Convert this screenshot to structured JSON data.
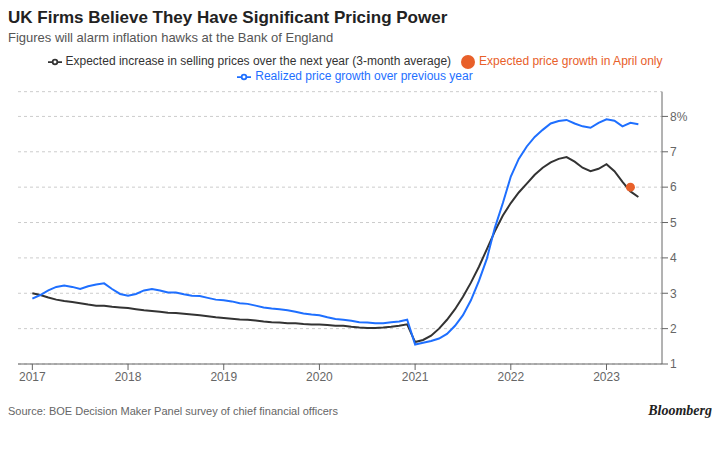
{
  "chart_data": {
    "type": "line",
    "title": "UK Firms Believe They Have Significant Pricing Power",
    "subtitle": "Figures will alarm inflation hawks at the Bank of England",
    "annotations": [
      "Source: BOE Decision Maker Panel survey of chief financial officers",
      "Bloomberg"
    ],
    "series": [
      {
        "name": "Expected increase in selling prices over the next year (3-month average)",
        "type": "line",
        "color": "#333333",
        "x": [
          2017.0,
          2017.083,
          2017.167,
          2017.25,
          2017.333,
          2017.417,
          2017.5,
          2017.583,
          2017.667,
          2017.75,
          2017.833,
          2017.917,
          2018.0,
          2018.083,
          2018.167,
          2018.25,
          2018.333,
          2018.417,
          2018.5,
          2018.583,
          2018.667,
          2018.75,
          2018.833,
          2018.917,
          2019.0,
          2019.083,
          2019.167,
          2019.25,
          2019.333,
          2019.417,
          2019.5,
          2019.583,
          2019.667,
          2019.75,
          2019.833,
          2019.917,
          2020.0,
          2020.083,
          2020.167,
          2020.25,
          2020.333,
          2020.417,
          2020.5,
          2020.583,
          2020.667,
          2020.75,
          2020.833,
          2020.917,
          2021.0,
          2021.083,
          2021.167,
          2021.25,
          2021.333,
          2021.417,
          2021.5,
          2021.583,
          2021.667,
          2021.75,
          2021.833,
          2021.917,
          2022.0,
          2022.083,
          2022.167,
          2022.25,
          2022.333,
          2022.417,
          2022.5,
          2022.583,
          2022.667,
          2022.75,
          2022.833,
          2022.917,
          2023.0,
          2023.083,
          2023.167,
          2023.25,
          2023.333
        ],
        "values": [
          3.0,
          2.95,
          2.88,
          2.82,
          2.78,
          2.75,
          2.72,
          2.68,
          2.65,
          2.65,
          2.62,
          2.6,
          2.58,
          2.55,
          2.52,
          2.5,
          2.48,
          2.45,
          2.44,
          2.42,
          2.4,
          2.38,
          2.35,
          2.32,
          2.3,
          2.28,
          2.26,
          2.25,
          2.23,
          2.2,
          2.18,
          2.17,
          2.15,
          2.15,
          2.13,
          2.12,
          2.12,
          2.1,
          2.08,
          2.08,
          2.05,
          2.03,
          2.02,
          2.02,
          2.03,
          2.05,
          2.08,
          2.12,
          1.62,
          1.68,
          1.8,
          2.0,
          2.25,
          2.55,
          2.9,
          3.3,
          3.75,
          4.25,
          4.75,
          5.2,
          5.55,
          5.85,
          6.1,
          6.35,
          6.55,
          6.7,
          6.8,
          6.85,
          6.72,
          6.55,
          6.45,
          6.52,
          6.65,
          6.45,
          6.15,
          5.88,
          5.72
        ]
      },
      {
        "name": "Realized price growth over previous year",
        "type": "line",
        "color": "#1e6fff",
        "x": [
          2017.0,
          2017.083,
          2017.167,
          2017.25,
          2017.333,
          2017.417,
          2017.5,
          2017.583,
          2017.667,
          2017.75,
          2017.833,
          2017.917,
          2018.0,
          2018.083,
          2018.167,
          2018.25,
          2018.333,
          2018.417,
          2018.5,
          2018.583,
          2018.667,
          2018.75,
          2018.833,
          2018.917,
          2019.0,
          2019.083,
          2019.167,
          2019.25,
          2019.333,
          2019.417,
          2019.5,
          2019.583,
          2019.667,
          2019.75,
          2019.833,
          2019.917,
          2020.0,
          2020.083,
          2020.167,
          2020.25,
          2020.333,
          2020.417,
          2020.5,
          2020.583,
          2020.667,
          2020.75,
          2020.833,
          2020.917,
          2021.0,
          2021.083,
          2021.167,
          2021.25,
          2021.333,
          2021.417,
          2021.5,
          2021.583,
          2021.667,
          2021.75,
          2021.833,
          2021.917,
          2022.0,
          2022.083,
          2022.167,
          2022.25,
          2022.333,
          2022.417,
          2022.5,
          2022.583,
          2022.667,
          2022.75,
          2022.833,
          2022.917,
          2023.0,
          2023.083,
          2023.167,
          2023.25,
          2023.333
        ],
        "values": [
          2.85,
          2.95,
          3.08,
          3.18,
          3.22,
          3.18,
          3.12,
          3.2,
          3.25,
          3.28,
          3.12,
          2.98,
          2.93,
          2.98,
          3.08,
          3.12,
          3.08,
          3.02,
          3.02,
          2.97,
          2.93,
          2.92,
          2.87,
          2.82,
          2.8,
          2.77,
          2.72,
          2.7,
          2.65,
          2.6,
          2.57,
          2.55,
          2.52,
          2.48,
          2.43,
          2.4,
          2.38,
          2.32,
          2.27,
          2.25,
          2.22,
          2.18,
          2.17,
          2.15,
          2.15,
          2.18,
          2.2,
          2.25,
          1.55,
          1.6,
          1.65,
          1.72,
          1.85,
          2.08,
          2.38,
          2.8,
          3.35,
          3.98,
          4.85,
          5.55,
          6.3,
          6.8,
          7.15,
          7.42,
          7.62,
          7.8,
          7.87,
          7.9,
          7.8,
          7.72,
          7.68,
          7.82,
          7.92,
          7.88,
          7.72,
          7.82,
          7.78
        ]
      },
      {
        "name": "Expected price growth in April only",
        "type": "scatter",
        "marker": "circle",
        "color": "#e8602a",
        "x": [
          2023.25
        ],
        "values": [
          6.0
        ]
      }
    ],
    "xlim": [
      2016.85,
      2023.58
    ],
    "xticks": [
      2017,
      2018,
      2019,
      2020,
      2021,
      2022,
      2023
    ],
    "ylim": [
      1.0,
      8.7
    ],
    "yticks": [
      1,
      2,
      3,
      4,
      5,
      6,
      7,
      {
        "value": 8,
        "label": "8%"
      }
    ],
    "grid": "y",
    "legend": "top"
  }
}
